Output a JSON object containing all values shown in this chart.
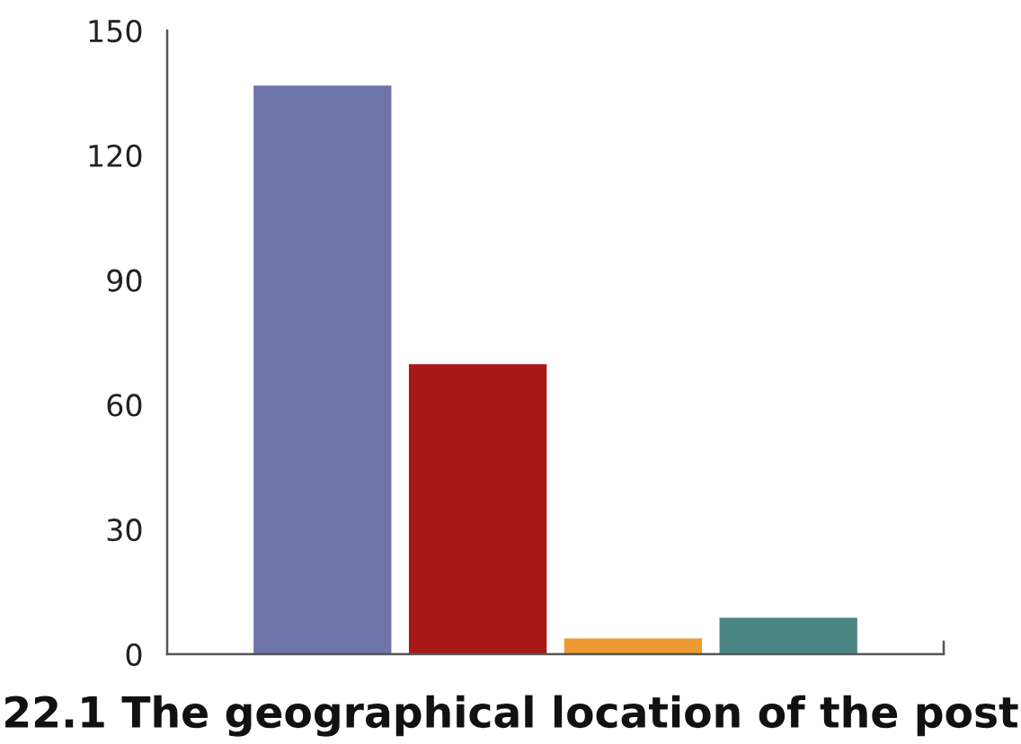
{
  "chart_data": {
    "type": "bar",
    "title": "22.1 The geographical location of the post",
    "categories": [
      null,
      null,
      null,
      null
    ],
    "values": [
      137,
      70,
      4,
      9
    ],
    "colors": [
      "#6e73a9",
      "#a81819",
      "#ee9a33",
      "#4a8683"
    ],
    "ylim": [
      0,
      150
    ],
    "yticks": [
      0,
      30,
      60,
      90,
      120,
      150
    ],
    "grid": false,
    "legend": false
  }
}
